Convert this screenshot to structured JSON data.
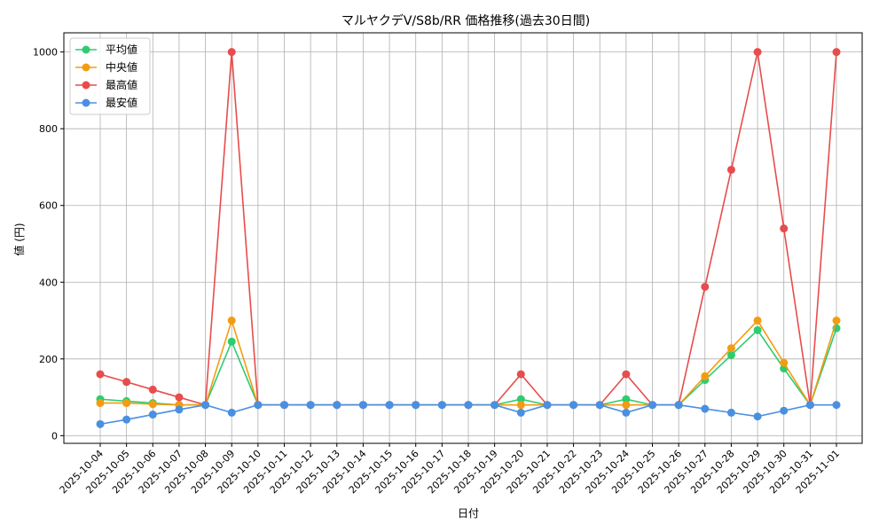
{
  "chart_data": {
    "type": "line",
    "title": "マルヤクデV/S8b/RR 価格推移(過去30日間)",
    "xlabel": "日付",
    "ylabel": "値 (円)",
    "ylim": [
      -20,
      1050
    ],
    "yticks": [
      0,
      200,
      400,
      600,
      800,
      1000
    ],
    "grid": true,
    "legend_position": "top-left",
    "categories": [
      "2025-10-04",
      "2025-10-05",
      "2025-10-06",
      "2025-10-07",
      "2025-10-08",
      "2025-10-09",
      "2025-10-10",
      "2025-10-11",
      "2025-10-12",
      "2025-10-13",
      "2025-10-14",
      "2025-10-15",
      "2025-10-16",
      "2025-10-17",
      "2025-10-18",
      "2025-10-19",
      "2025-10-20",
      "2025-10-21",
      "2025-10-22",
      "2025-10-23",
      "2025-10-24",
      "2025-10-25",
      "2025-10-26",
      "2025-10-27",
      "2025-10-28",
      "2025-10-29",
      "2025-10-30",
      "2025-10-31",
      "2025-11-01"
    ],
    "series": [
      {
        "name": "平均値",
        "color": "#2ecc71",
        "values": [
          95,
          90,
          85,
          80,
          80,
          245,
          80,
          80,
          80,
          80,
          80,
          80,
          80,
          80,
          80,
          80,
          95,
          80,
          80,
          80,
          95,
          80,
          80,
          145,
          210,
          275,
          175,
          80,
          280
        ]
      },
      {
        "name": "中央値",
        "color": "#f39c12",
        "values": [
          85,
          85,
          82,
          80,
          80,
          300,
          80,
          80,
          80,
          80,
          80,
          80,
          80,
          80,
          80,
          80,
          80,
          80,
          80,
          80,
          80,
          80,
          80,
          155,
          228,
          300,
          190,
          80,
          300
        ]
      },
      {
        "name": "最高値",
        "color": "#e84c4c",
        "values": [
          160,
          140,
          120,
          100,
          80,
          1000,
          80,
          80,
          80,
          80,
          80,
          80,
          80,
          80,
          80,
          80,
          160,
          80,
          80,
          80,
          160,
          80,
          80,
          388,
          693,
          1000,
          540,
          80,
          1000
        ]
      },
      {
        "name": "最安値",
        "color": "#4a90e2",
        "values": [
          30,
          42,
          55,
          68,
          80,
          60,
          80,
          80,
          80,
          80,
          80,
          80,
          80,
          80,
          80,
          80,
          60,
          80,
          80,
          80,
          60,
          80,
          80,
          70,
          60,
          50,
          65,
          80,
          80
        ]
      }
    ]
  }
}
